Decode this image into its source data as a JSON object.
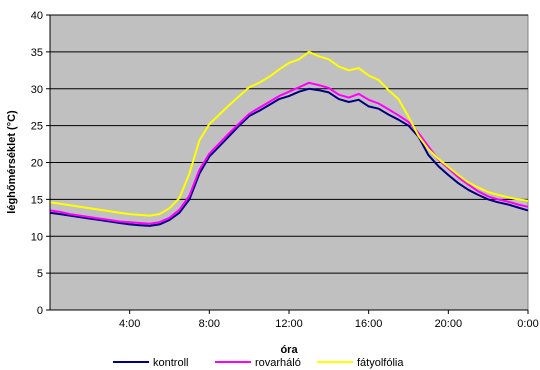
{
  "chart_data": {
    "type": "line",
    "xlabel": "óra",
    "ylabel": "léghőmérséklet (°C)",
    "xlim": [
      0,
      24
    ],
    "ylim": [
      0,
      40
    ],
    "y_ticks": [
      0,
      5,
      10,
      15,
      20,
      25,
      30,
      35,
      40
    ],
    "x_ticks": [
      {
        "value": 4,
        "label": "4:00"
      },
      {
        "value": 8,
        "label": "8:00"
      },
      {
        "value": 12,
        "label": "12:00"
      },
      {
        "value": 16,
        "label": "16:00"
      },
      {
        "value": 20,
        "label": "20:00"
      },
      {
        "value": 24,
        "label": "0:00"
      }
    ],
    "grid": "horizontal",
    "plot_background": "#C0C0C0",
    "legend_position": "bottom",
    "x": [
      0,
      0.5,
      1,
      1.5,
      2,
      2.5,
      3,
      3.5,
      4,
      4.5,
      5,
      5.5,
      6,
      6.5,
      7,
      7.5,
      8,
      8.5,
      9,
      9.5,
      10,
      10.5,
      11,
      11.5,
      12,
      12.5,
      13,
      13.5,
      14,
      14.5,
      15,
      15.5,
      16,
      16.5,
      17,
      17.5,
      18,
      18.5,
      19,
      19.5,
      20,
      20.5,
      21,
      21.5,
      22,
      22.5,
      23,
      23.5,
      24
    ],
    "series": [
      {
        "name": "kontroll",
        "color": "#000080",
        "values": [
          13.2,
          13.0,
          12.8,
          12.6,
          12.4,
          12.2,
          12.0,
          11.8,
          11.6,
          11.5,
          11.4,
          11.6,
          12.2,
          13.2,
          15.0,
          18.5,
          20.8,
          22.2,
          23.6,
          25.0,
          26.3,
          27.0,
          27.8,
          28.6,
          29.0,
          29.6,
          30.0,
          29.8,
          29.5,
          28.6,
          28.2,
          28.5,
          27.6,
          27.3,
          26.5,
          25.8,
          25.0,
          23.5,
          21.0,
          19.5,
          18.3,
          17.2,
          16.3,
          15.6,
          15.0,
          14.6,
          14.3,
          13.9,
          13.5
        ]
      },
      {
        "name": "rovarháló",
        "color": "#FF00FF",
        "values": [
          13.5,
          13.3,
          13.0,
          12.8,
          12.6,
          12.4,
          12.2,
          12.0,
          11.9,
          11.8,
          11.7,
          11.9,
          12.5,
          13.6,
          15.5,
          19.0,
          21.2,
          22.6,
          24.0,
          25.3,
          26.6,
          27.4,
          28.2,
          29.0,
          29.6,
          30.2,
          30.8,
          30.5,
          30.1,
          29.2,
          28.8,
          29.3,
          28.5,
          28.0,
          27.2,
          26.4,
          25.5,
          24.0,
          22.2,
          20.4,
          19.2,
          18.0,
          17.0,
          16.1,
          15.4,
          15.0,
          14.7,
          14.3,
          14.0
        ]
      },
      {
        "name": "fátyolfólia",
        "color": "#FFFF00",
        "values": [
          14.6,
          14.4,
          14.2,
          14.0,
          13.8,
          13.6,
          13.4,
          13.2,
          13.0,
          12.9,
          12.8,
          13.0,
          13.8,
          15.2,
          18.5,
          23.0,
          25.2,
          26.5,
          27.8,
          29.0,
          30.2,
          30.8,
          31.6,
          32.6,
          33.5,
          34.0,
          35.0,
          34.4,
          34.0,
          33.0,
          32.5,
          32.8,
          31.8,
          31.2,
          29.8,
          28.6,
          26.2,
          23.6,
          21.8,
          20.5,
          19.4,
          18.3,
          17.3,
          16.6,
          16.0,
          15.6,
          15.3,
          15.0,
          14.8
        ]
      }
    ]
  }
}
